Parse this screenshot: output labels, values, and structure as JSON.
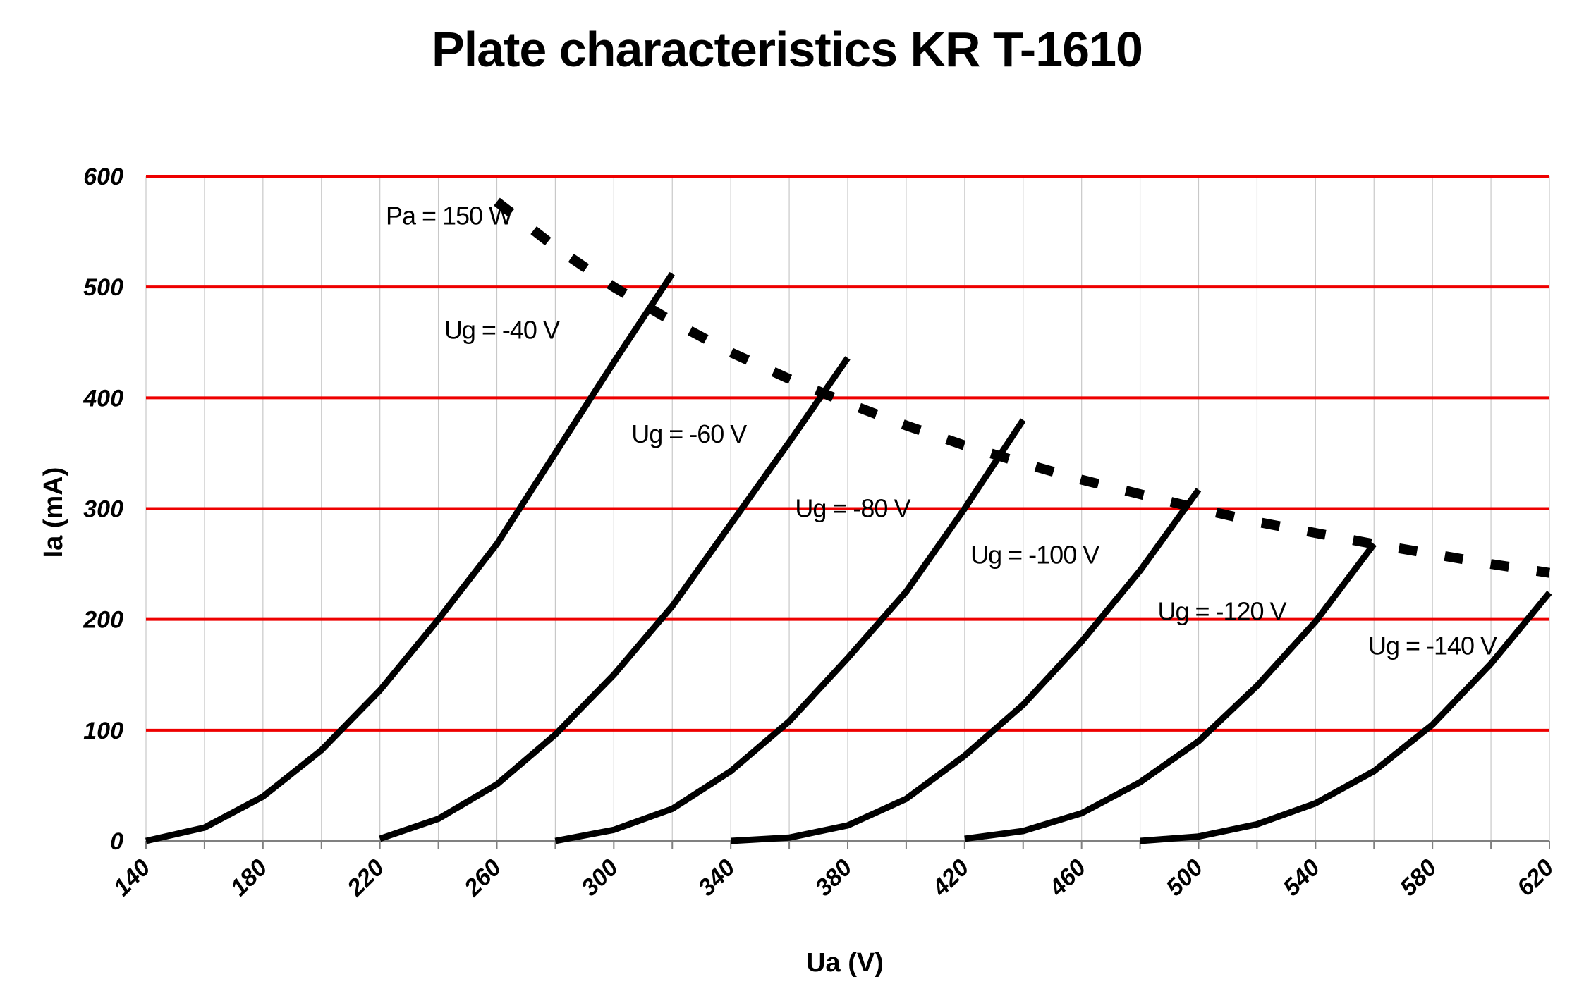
{
  "chart_data": {
    "type": "line",
    "title": "Plate characteristics KR T-1610",
    "xlabel": "Ua (V)",
    "ylabel": "Ia (mA)",
    "xlim": [
      140,
      620
    ],
    "ylim": [
      0,
      600
    ],
    "x_ticks": [
      "140",
      "180",
      "220",
      "260",
      "300",
      "340",
      "380",
      "420",
      "460",
      "500",
      "540",
      "580",
      "620"
    ],
    "y_ticks": [
      "0",
      "100",
      "200",
      "300",
      "400",
      "500",
      "600"
    ],
    "x_grid_step": 20,
    "grid": {
      "horizontal": true,
      "vertical": true
    },
    "colors": {
      "major_grid": "#ee0000",
      "minor_grid": "#c8c8c8",
      "curves": "#000000",
      "background": "#ffffff"
    },
    "series": [
      {
        "name": "Ug = -40 V",
        "x": [
          140,
          160,
          180,
          200,
          220,
          240,
          260,
          280,
          300,
          320
        ],
        "y": [
          0,
          12,
          40,
          82,
          136,
          200,
          268,
          350,
          432,
          512
        ]
      },
      {
        "name": "Ug = -60 V",
        "x": [
          220,
          240,
          260,
          280,
          300,
          320,
          340,
          360,
          380
        ],
        "y": [
          2,
          20,
          51,
          96,
          150,
          212,
          286,
          360,
          436
        ]
      },
      {
        "name": "Ug = -80 V",
        "x": [
          280,
          300,
          320,
          340,
          360,
          380,
          400,
          420,
          440
        ],
        "y": [
          0,
          10,
          29,
          63,
          108,
          165,
          225,
          300,
          380
        ]
      },
      {
        "name": "Ug = -100 V",
        "x": [
          340,
          360,
          380,
          400,
          420,
          440,
          460,
          480,
          500
        ],
        "y": [
          0,
          3,
          14,
          38,
          77,
          123,
          180,
          244,
          317
        ]
      },
      {
        "name": "Ug = -120 V",
        "x": [
          420,
          440,
          460,
          480,
          500,
          520,
          540,
          560
        ],
        "y": [
          2,
          9,
          25,
          53,
          90,
          140,
          198,
          268
        ]
      },
      {
        "name": "Ug = -140 V",
        "x": [
          480,
          500,
          520,
          540,
          560,
          580,
          600,
          620
        ],
        "y": [
          0,
          4,
          15,
          34,
          63,
          105,
          160,
          224
        ]
      },
      {
        "name": "Pa = 150 W",
        "style": "dashed",
        "x": [
          260,
          280,
          300,
          320,
          340,
          360,
          380,
          400,
          420,
          440,
          460,
          480,
          500,
          520,
          540,
          560,
          580,
          600,
          620
        ],
        "y": [
          577,
          536,
          500,
          469,
          441,
          417,
          395,
          375,
          357,
          341,
          326,
          313,
          300,
          288,
          278,
          268,
          259,
          250,
          242
        ]
      }
    ],
    "annotations": [
      {
        "text": "Pa = 150 W",
        "x": 222,
        "y": 564
      },
      {
        "text": "Ug = -40 V",
        "x": 242,
        "y": 461
      },
      {
        "text": "Ug = -60 V",
        "x": 306,
        "y": 367
      },
      {
        "text": "Ug = -80 V",
        "x": 362,
        "y": 300
      },
      {
        "text": "Ug = -100 V",
        "x": 422,
        "y": 258
      },
      {
        "text": "Ug = -120 V",
        "x": 486,
        "y": 207
      },
      {
        "text": "Ug = -140 V",
        "x": 558,
        "y": 176
      }
    ]
  }
}
